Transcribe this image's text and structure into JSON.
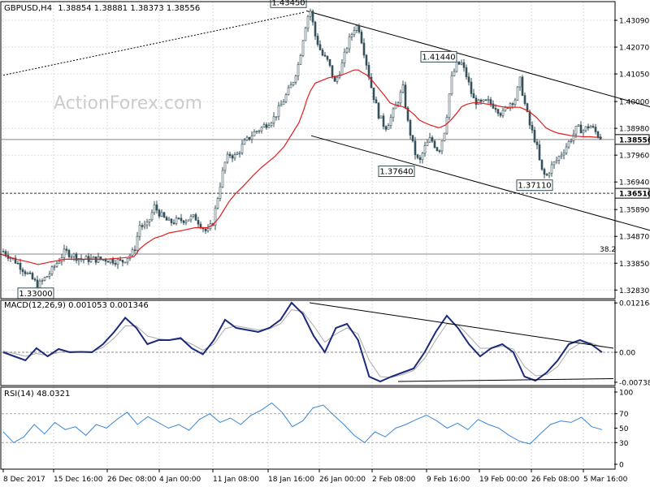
{
  "chart_data": [
    {
      "type": "candlestick",
      "title": "GBPUSD,H4",
      "ohlc_label": "1.38854 1.38881 1.38373 1.38556",
      "watermark": "ActionForex.com",
      "ylim": [
        1.325,
        1.438
      ],
      "yticks": [
        "1.43090",
        "1.42070",
        "1.41050",
        "1.40000",
        "1.38980",
        "1.37960",
        "1.36940",
        "1.35890",
        "1.34870",
        "1.33850",
        "1.32830"
      ],
      "xticks": [
        "8 Dec 2017",
        "15 Dec 16:00",
        "26 Dec 08:00",
        "4 Jan 00:00",
        "11 Jan 08:00",
        "18 Jan 16:00",
        "26 Jan 00:00",
        "2 Feb 08:00",
        "9 Feb 16:00",
        "19 Feb 00:00",
        "26 Feb 08:00",
        "5 Mar 16:00"
      ],
      "grid": true,
      "price_path_x": [
        0,
        20,
        35,
        47,
        62,
        80,
        100,
        130,
        150,
        165,
        172,
        180,
        190,
        200,
        208,
        225,
        240,
        255,
        262,
        270,
        276,
        282,
        290,
        300,
        312,
        322,
        338,
        350,
        360,
        368,
        374,
        378,
        382,
        388,
        396,
        404,
        412,
        420,
        428,
        436,
        441,
        446,
        452,
        458,
        466,
        474,
        480,
        488,
        496,
        502,
        510,
        516,
        522,
        530,
        540,
        548,
        555,
        562,
        568,
        575,
        582,
        590,
        600,
        610,
        618,
        626,
        634,
        640,
        646,
        652,
        660,
        666,
        672,
        678,
        686,
        695,
        703,
        710,
        718,
        726,
        734,
        741
      ],
      "price_path_y": [
        1.344,
        1.339,
        1.334,
        1.33,
        1.335,
        1.343,
        1.34,
        1.34,
        1.339,
        1.343,
        1.353,
        1.352,
        1.36,
        1.356,
        1.354,
        1.355,
        1.356,
        1.35,
        1.354,
        1.367,
        1.376,
        1.38,
        1.379,
        1.384,
        1.388,
        1.39,
        1.394,
        1.401,
        1.407,
        1.415,
        1.426,
        1.432,
        1.4345,
        1.425,
        1.418,
        1.415,
        1.407,
        1.413,
        1.422,
        1.428,
        1.429,
        1.422,
        1.413,
        1.404,
        1.395,
        1.39,
        1.393,
        1.399,
        1.405,
        1.392,
        1.381,
        1.3764,
        1.382,
        1.386,
        1.381,
        1.39,
        1.408,
        1.414,
        1.4144,
        1.409,
        1.401,
        1.399,
        1.4,
        1.398,
        1.395,
        1.399,
        1.401,
        1.408,
        1.399,
        1.391,
        1.384,
        1.374,
        1.3711,
        1.375,
        1.378,
        1.382,
        1.386,
        1.39,
        1.389,
        1.391,
        1.388,
        1.3856
      ],
      "ma_path_y": [
        1.342,
        1.34,
        1.339,
        1.338,
        1.339,
        1.34,
        1.34,
        1.34,
        1.3405,
        1.341,
        1.344,
        1.346,
        1.348,
        1.349,
        1.35,
        1.351,
        1.352,
        1.352,
        1.353,
        1.356,
        1.359,
        1.362,
        1.365,
        1.368,
        1.372,
        1.375,
        1.379,
        1.383,
        1.388,
        1.392,
        1.397,
        1.401,
        1.404,
        1.407,
        1.408,
        1.409,
        1.4095,
        1.41,
        1.411,
        1.412,
        1.412,
        1.411,
        1.41,
        1.408,
        1.405,
        1.402,
        1.3995,
        1.3985,
        1.398,
        1.397,
        1.395,
        1.393,
        1.392,
        1.391,
        1.39,
        1.391,
        1.393,
        1.3955,
        1.398,
        1.399,
        1.3995,
        1.3995,
        1.399,
        1.3985,
        1.398,
        1.3978,
        1.3978,
        1.3978,
        1.397,
        1.396,
        1.394,
        1.392,
        1.39,
        1.389,
        1.388,
        1.3875,
        1.387,
        1.3868,
        1.3866,
        1.3866,
        1.3864,
        1.3862
      ],
      "prev_path_x": [
        4,
        375
      ],
      "prev_path_y": [
        1.41,
        1.434
      ],
      "levels": [
        {
          "label": "1.38556",
          "value": 1.38556,
          "style": "solid"
        },
        {
          "label": "1.36510",
          "value": 1.3651,
          "style": "dashed"
        },
        {
          "label": "38.2",
          "value": 1.342,
          "style": "solid"
        }
      ],
      "annotations": [
        {
          "label": "1.43450",
          "value": 1.4345
        },
        {
          "label": "1.41440",
          "value": 1.4144
        },
        {
          "label": "1.37640",
          "value": 1.3764
        },
        {
          "label": "1.37110",
          "value": 1.3711
        },
        {
          "label": "1.33000",
          "value": 1.33
        }
      ],
      "channel_upper_x": [
        377,
        800
      ],
      "channel_upper_y": [
        1.4345,
        1.398
      ],
      "channel_lower_x": [
        383,
        800
      ],
      "channel_lower_y": [
        1.387,
        1.351
      ]
    },
    {
      "type": "line",
      "title": "MACD(12,26,9) 0.001053 0.001346",
      "ylim": [
        -0.0082,
        0.0128
      ],
      "yticks": [
        "0.012164",
        "0.00",
        "-0.007384"
      ],
      "series": [
        {
          "values": [
            0.0,
            -0.001,
            -0.002,
            0.001,
            -0.001,
            0.0008,
            0.0,
            0.0001,
            0.0,
            0.002,
            0.005,
            0.0085,
            0.006,
            0.002,
            0.003,
            0.003,
            0.0035,
            0.001,
            -0.0005,
            0.003,
            0.008,
            0.006,
            0.0055,
            0.005,
            0.006,
            0.008,
            0.0122,
            0.0095,
            0.004,
            0.0,
            0.006,
            0.007,
            0.003,
            -0.006,
            -0.0072,
            -0.006,
            -0.005,
            -0.004,
            0.0,
            0.005,
            0.009,
            0.006,
            0.002,
            -0.001,
            0.001,
            0.002,
            0.0,
            -0.006,
            -0.007,
            -0.005,
            -0.002,
            0.002,
            0.003,
            0.002,
            0.0
          ]
        },
        {
          "values": [
            0.0003,
            -0.0003,
            -0.001,
            -0.0003,
            -0.0008,
            0.0,
            0.0002,
            0.0002,
            0.0002,
            0.0012,
            0.0035,
            0.0065,
            0.0065,
            0.004,
            0.0033,
            0.003,
            0.0032,
            0.002,
            0.0005,
            0.002,
            0.0058,
            0.0065,
            0.006,
            0.0055,
            0.0058,
            0.007,
            0.0105,
            0.01,
            0.0065,
            0.0025,
            0.0045,
            0.006,
            0.0045,
            -0.002,
            -0.006,
            -0.0062,
            -0.0055,
            -0.0045,
            -0.0015,
            0.003,
            0.007,
            0.0068,
            0.004,
            0.001,
            0.001,
            0.0015,
            0.0008,
            -0.0035,
            -0.0058,
            -0.0055,
            -0.0035,
            0.0005,
            0.0022,
            0.0023,
            0.0013
          ]
        }
      ],
      "trendlines": [
        {
          "x": [
            381,
            755
          ],
          "y": [
            0.0122,
            0.001
          ]
        },
        {
          "x": [
            490,
            755
          ],
          "y": [
            -0.0072,
            -0.0065
          ]
        }
      ]
    },
    {
      "type": "line",
      "title": "RSI(14) 48.0321",
      "ylim": [
        0,
        100
      ],
      "yticks": [
        "100",
        "70",
        "50",
        "30",
        "0"
      ],
      "reference_levels": [
        70,
        30
      ],
      "series": [
        {
          "values": [
            45,
            30,
            38,
            55,
            42,
            58,
            48,
            52,
            40,
            55,
            50,
            62,
            72,
            55,
            66,
            58,
            50,
            55,
            47,
            62,
            70,
            58,
            64,
            55,
            68,
            75,
            85,
            72,
            52,
            60,
            78,
            82,
            68,
            55,
            40,
            30,
            45,
            38,
            50,
            55,
            62,
            68,
            60,
            50,
            57,
            48,
            62,
            55,
            50,
            40,
            32,
            28,
            42,
            55,
            60,
            58,
            65,
            52,
            48
          ]
        }
      ]
    }
  ]
}
